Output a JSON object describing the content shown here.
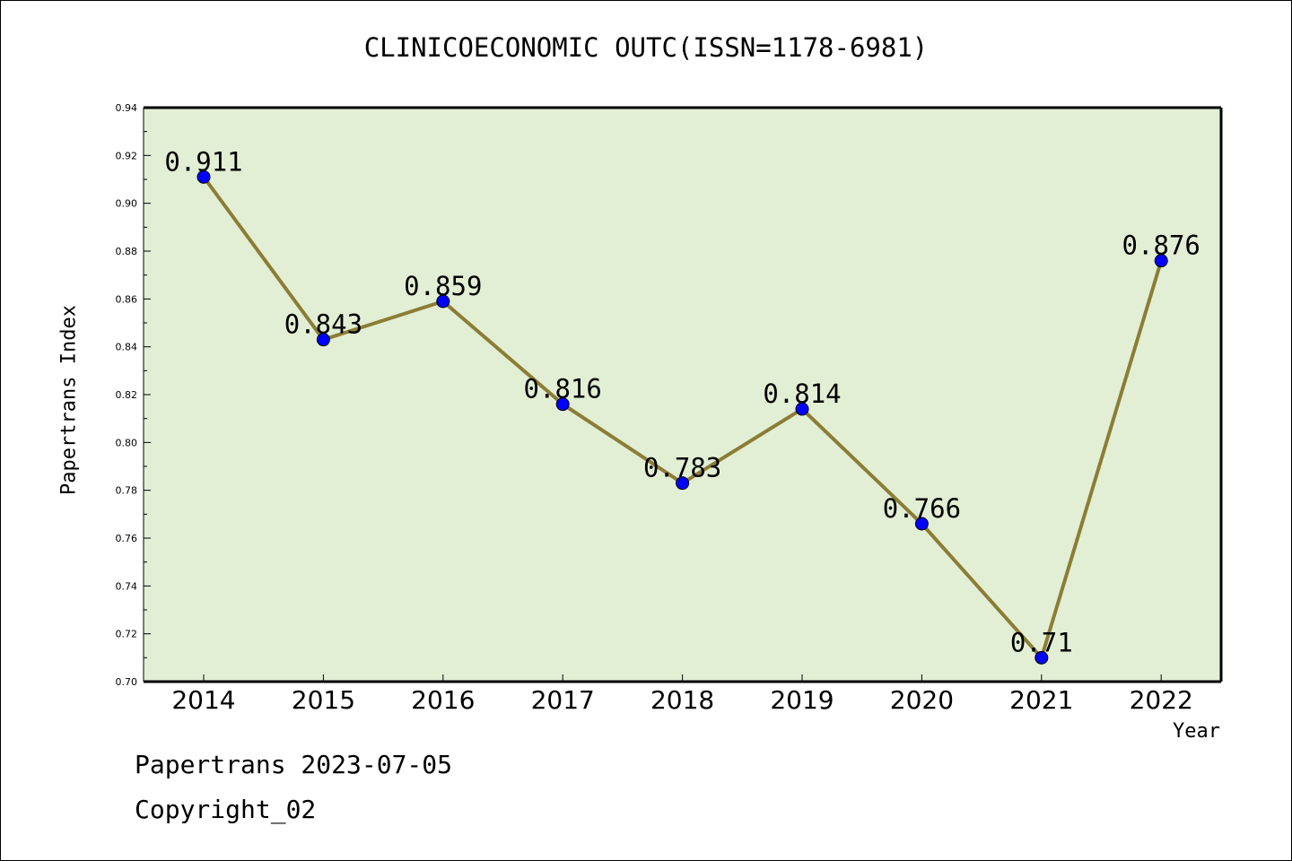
{
  "chart_data": {
    "type": "line",
    "title": "CLINICOECONOMIC OUTC(ISSN=1178-6981)",
    "xlabel": "Year",
    "ylabel": "Papertrans Index",
    "categories": [
      "2014",
      "2015",
      "2016",
      "2017",
      "2018",
      "2019",
      "2020",
      "2021",
      "2022"
    ],
    "series": [
      {
        "values": [
          0.911,
          0.843,
          0.859,
          0.816,
          0.783,
          0.814,
          0.766,
          0.71,
          0.876
        ],
        "labels": [
          "0.911",
          "0.843",
          "0.859",
          "0.816",
          "0.783",
          "0.814",
          "0.766",
          "0.71",
          "0.876"
        ]
      }
    ],
    "ylim": [
      0.7,
      0.94
    ],
    "yticks": [
      "0.70",
      "0.72",
      "0.74",
      "0.76",
      "0.78",
      "0.80",
      "0.82",
      "0.84",
      "0.86",
      "0.88",
      "0.90",
      "0.92",
      "0.94"
    ],
    "grid": false,
    "legend": "none",
    "colors": {
      "plot_background": "#e2efd5",
      "line": "#8b7d35",
      "marker": "#0000ff"
    }
  },
  "footer": {
    "line1": "Papertrans 2023-07-05",
    "line2": "Copyright_02"
  }
}
